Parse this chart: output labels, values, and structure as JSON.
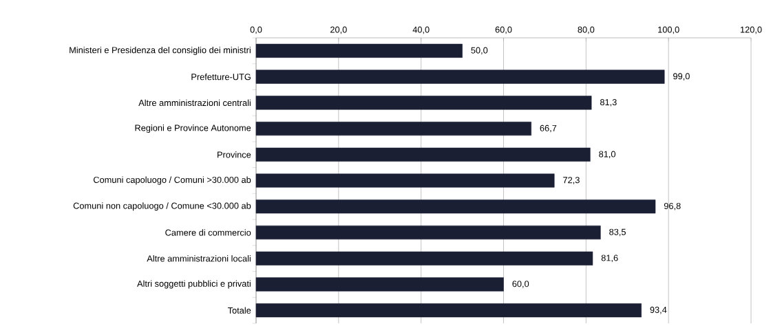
{
  "chart_data": {
    "type": "bar",
    "orientation": "horizontal",
    "categories": [
      "Ministeri e Presidenza del consiglio dei ministri",
      "Prefetture-UTG",
      "Altre amministrazioni centrali",
      "Regioni e Province Autonome",
      "Province",
      "Comuni capoluogo / Comuni >30.000 ab",
      "Comuni non capoluogo / Comune <30.000 ab",
      "Camere di commercio",
      "Altre amministrazioni locali",
      "Altri soggetti pubblici e privati",
      "Totale"
    ],
    "values": [
      50.0,
      99.0,
      81.3,
      66.7,
      81.0,
      72.3,
      96.8,
      83.5,
      81.6,
      60.0,
      93.4
    ],
    "value_labels": [
      "50,0",
      "99,0",
      "81,3",
      "66,7",
      "81,0",
      "72,3",
      "96,8",
      "83,5",
      "81,6",
      "60,0",
      "93,4"
    ],
    "color": "#1b1f33",
    "xlim": [
      0,
      120
    ],
    "xticks": [
      {
        "value": 0,
        "label": "0,0"
      },
      {
        "value": 20,
        "label": "20,0"
      },
      {
        "value": 40,
        "label": "40,0"
      },
      {
        "value": 60,
        "label": "60,0"
      },
      {
        "value": 80,
        "label": "80,0"
      },
      {
        "value": 100,
        "label": "100,0"
      },
      {
        "value": 120,
        "label": "120,0"
      }
    ],
    "grid": "x"
  }
}
